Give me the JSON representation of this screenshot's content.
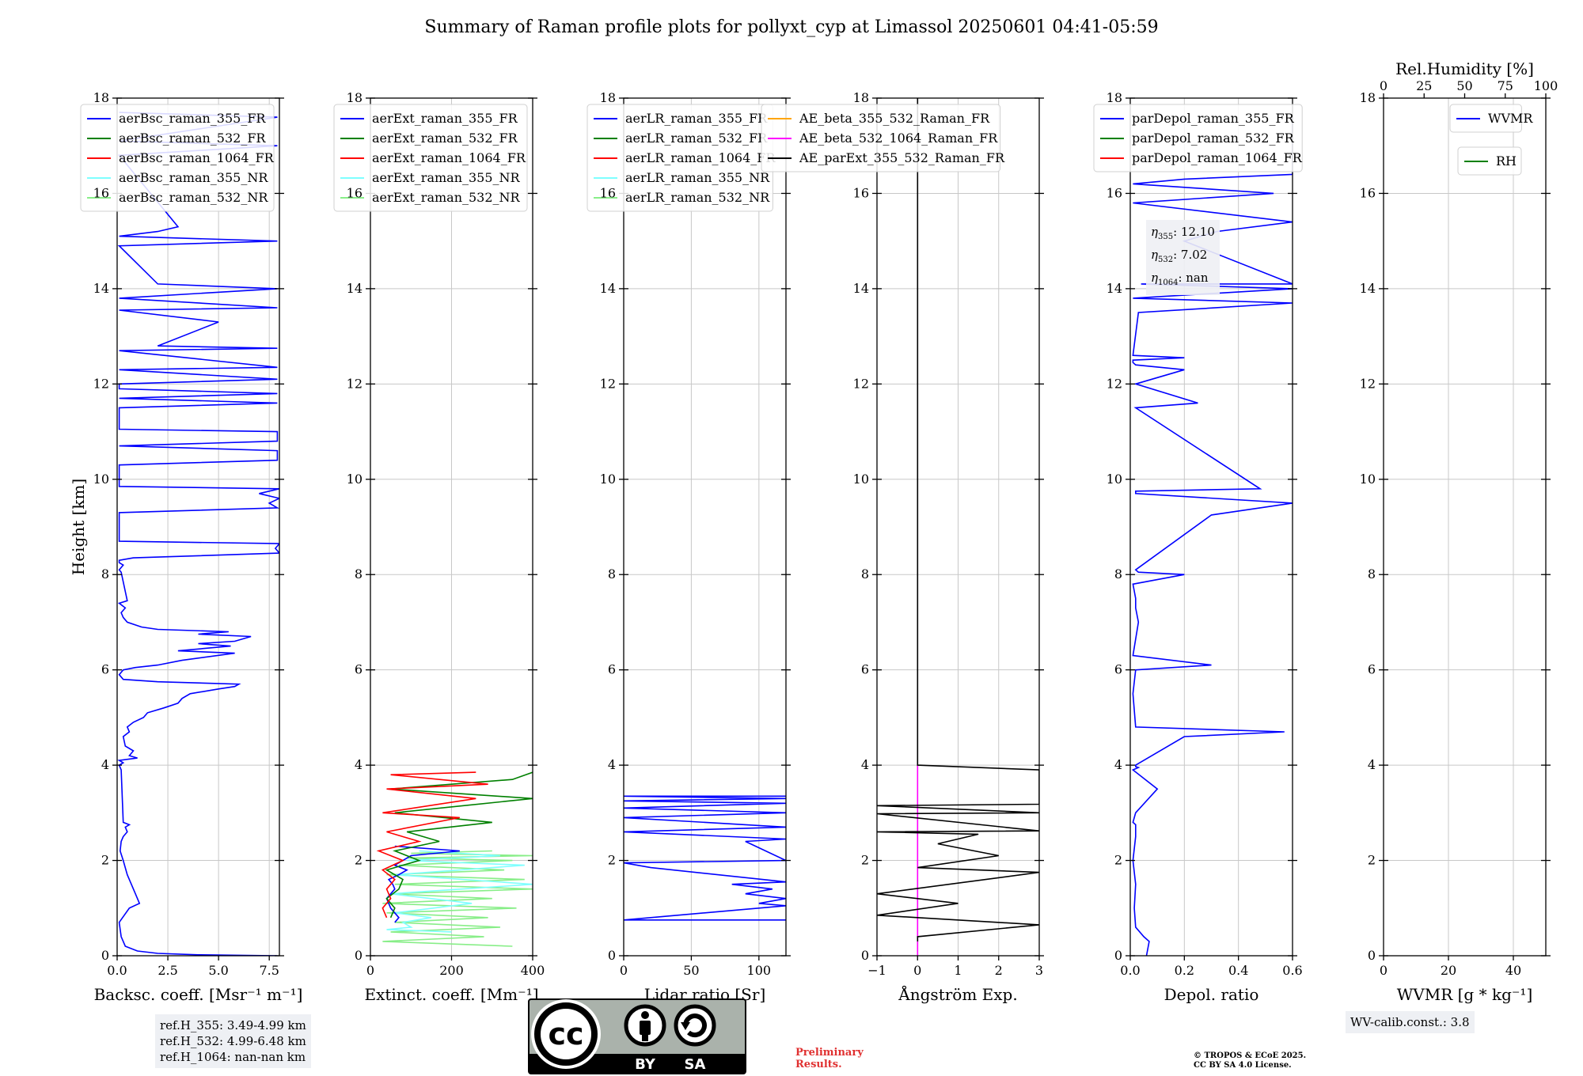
{
  "title": "Summary of Raman profile plots for pollyxt_cyp at Limassol 20250601 04:41-05:59",
  "y_axis_label": "Height [km]",
  "panels": [
    {
      "xlabel": "Backsc. coeff. [Msr⁻¹ m⁻¹]",
      "xlim": [
        0,
        8
      ],
      "xticks": [
        "0.0",
        "2.5",
        "5.0",
        "7.5"
      ],
      "xtick_values": [
        0,
        2.5,
        5,
        7.5
      ],
      "legend": [
        {
          "label": "aerBsc_raman_355_FR",
          "color": "#0000ff"
        },
        {
          "label": "aerBsc_raman_532_FR",
          "color": "#008000"
        },
        {
          "label": "aerBsc_raman_1064_FR",
          "color": "#ff0000"
        },
        {
          "label": "aerBsc_raman_355_NR",
          "color": "#7fffff"
        },
        {
          "label": "aerBsc_raman_532_NR",
          "color": "#88ee88"
        }
      ]
    },
    {
      "xlabel": "Extinct. coeff. [Mm⁻¹]",
      "xlim": [
        0,
        400
      ],
      "xticks": [
        "0",
        "200",
        "400"
      ],
      "xtick_values": [
        0,
        200,
        400
      ],
      "legend": [
        {
          "label": "aerExt_raman_355_FR",
          "color": "#0000ff"
        },
        {
          "label": "aerExt_raman_532_FR",
          "color": "#008000"
        },
        {
          "label": "aerExt_raman_1064_FR",
          "color": "#ff0000"
        },
        {
          "label": "aerExt_raman_355_NR",
          "color": "#7fffff"
        },
        {
          "label": "aerExt_raman_532_NR",
          "color": "#88ee88"
        }
      ]
    },
    {
      "xlabel": "Lidar ratio [Sr]",
      "xlim": [
        0,
        120
      ],
      "xticks": [
        "0",
        "50",
        "100"
      ],
      "xtick_values": [
        0,
        50,
        100
      ],
      "legend": [
        {
          "label": "aerLR_raman_355_FR",
          "color": "#0000ff"
        },
        {
          "label": "aerLR_raman_532_FR",
          "color": "#008000"
        },
        {
          "label": "aerLR_raman_1064_FR",
          "color": "#ff0000"
        },
        {
          "label": "aerLR_raman_355_NR",
          "color": "#7fffff"
        },
        {
          "label": "aerLR_raman_532_NR",
          "color": "#88ee88"
        }
      ]
    },
    {
      "xlabel": "Ångström Exp.",
      "xlim": [
        -1,
        3
      ],
      "xticks": [
        "−1",
        "0",
        "1",
        "2",
        "3"
      ],
      "xtick_values": [
        -1,
        0,
        1,
        2,
        3
      ],
      "legend": [
        {
          "label": "AE_beta_355_532_Raman_FR",
          "color": "#ffa500"
        },
        {
          "label": "AE_beta_532_1064_Raman_FR",
          "color": "#ff00ff"
        },
        {
          "label": "AE_parExt_355_532_Raman_FR",
          "color": "#000000"
        }
      ]
    },
    {
      "xlabel": "Depol. ratio",
      "xlim": [
        0,
        0.6
      ],
      "xticks": [
        "0.0",
        "0.2",
        "0.4",
        "0.6"
      ],
      "xtick_values": [
        0,
        0.2,
        0.4,
        0.6
      ],
      "legend": [
        {
          "label": "parDepol_raman_355_FR",
          "color": "#0000ff"
        },
        {
          "label": "parDepol_raman_532_FR",
          "color": "#008000"
        },
        {
          "label": "parDepol_raman_1064_FR",
          "color": "#ff0000"
        }
      ]
    },
    {
      "xlabel": "WVMR [g * kg⁻¹]",
      "xlim": [
        0,
        50
      ],
      "xticks": [
        "0",
        "20",
        "40"
      ],
      "xtick_values": [
        0,
        20,
        40
      ],
      "top_label": "Rel.Humidity [%]",
      "top_xlim": [
        0,
        100
      ],
      "top_xticks": [
        "0",
        "25",
        "50",
        "75",
        "100"
      ],
      "top_xtick_values": [
        0,
        25,
        50,
        75,
        100
      ],
      "legend": [
        {
          "label": "WVMR",
          "color": "#0000ff"
        }
      ],
      "legend2": [
        {
          "label": "RH",
          "color": "#008000"
        }
      ]
    }
  ],
  "ylim": [
    0,
    18
  ],
  "yticks": [
    "0",
    "2",
    "4",
    "6",
    "8",
    "10",
    "12",
    "14",
    "16",
    "18"
  ],
  "ytick_values": [
    0,
    2,
    4,
    6,
    8,
    10,
    12,
    14,
    16,
    18
  ],
  "eta_box": {
    "line1_label": "η",
    "line1_sub": "355",
    "line1_val": ": 12.10",
    "line2_label": "η",
    "line2_sub": "532",
    "line2_val": ": 7.02",
    "line3_label": "η",
    "line3_sub": "1064",
    "line3_val": ": nan"
  },
  "ref_heights": {
    "line1": "ref.H_355: 3.49-4.99 km",
    "line2": "ref.H_532: 4.99-6.48 km",
    "line3": "ref.H_1064: nan-nan km"
  },
  "wv_calib": "WV-calib.const.: 3.8",
  "preliminary": {
    "line1": "Preliminary",
    "line2": "Results."
  },
  "copyright": {
    "line1": "© TROPOS & ECoE 2025.",
    "line2": "CC BY SA 4.0 License."
  },
  "cc_badge": {
    "by": "BY",
    "sa": "SA",
    "cc": "cc"
  },
  "chart_data": [
    {
      "type": "line",
      "panel": "backscatter",
      "series": [
        {
          "name": "aerBsc_raman_355_FR",
          "color": "#0000ff",
          "x": [
            7.9,
            4.0,
            2.0,
            1.0,
            0.4,
            0.2,
            0.1,
            0.6,
            1.1,
            0.9,
            0.5,
            0.3,
            0.15,
            0.2,
            0.3,
            0.5,
            0.4,
            0.6,
            0.3,
            0.2,
            0.1,
            0.3,
            0.1,
            1.0,
            0.6,
            0.8,
            0.4,
            0.3,
            0.6,
            0.5,
            0.8,
            1.3,
            1.5,
            2.3,
            3.0,
            3.2,
            3.6,
            5.0,
            5.8,
            6.0,
            2.0,
            0.3,
            0.1,
            0.3,
            0.9,
            2.0,
            3.2,
            5.8,
            3.0,
            5.6,
            4.0,
            5.8,
            6.6,
            4.0,
            5.5,
            2.0,
            1.2,
            0.5,
            0.3,
            0.2,
            0.4,
            0.1,
            0.5,
            0.2,
            0.1,
            0.3,
            0.1,
            0.1,
            0.8,
            8.0,
            7.8,
            8.0,
            0.1,
            0.1,
            7.9,
            7.5,
            8.0,
            7.0,
            8.0,
            0.1,
            0.1,
            7.9,
            7.9,
            0.1,
            7.9,
            7.9,
            0.1,
            0.1,
            7.9,
            0.1,
            7.9,
            0.1,
            0.1,
            7.9,
            0.1,
            7.9,
            0.1,
            7.9,
            2.0,
            5.0,
            0.1,
            7.9,
            0.1,
            7.9,
            2.0,
            0.1,
            7.9,
            0.1,
            2.0,
            3.0,
            0.1,
            7.9,
            0.1,
            7.9,
            0.1
          ],
          "y": [
            0.0,
            0.02,
            0.05,
            0.1,
            0.2,
            0.4,
            0.7,
            1.0,
            1.1,
            1.3,
            1.7,
            2.0,
            2.2,
            2.4,
            2.5,
            2.6,
            2.7,
            2.75,
            2.8,
            3.9,
            4.0,
            4.05,
            4.1,
            4.15,
            4.2,
            4.3,
            4.4,
            4.6,
            4.7,
            4.8,
            4.9,
            5.0,
            5.1,
            5.2,
            5.3,
            5.4,
            5.5,
            5.6,
            5.65,
            5.7,
            5.75,
            5.8,
            5.9,
            6.0,
            6.05,
            6.1,
            6.2,
            6.35,
            6.4,
            6.5,
            6.55,
            6.6,
            6.7,
            6.75,
            6.8,
            6.85,
            6.9,
            7.0,
            7.1,
            7.2,
            7.3,
            7.4,
            7.45,
            8.05,
            8.1,
            8.2,
            8.25,
            8.3,
            8.35,
            8.45,
            8.55,
            8.65,
            8.7,
            9.3,
            9.4,
            9.5,
            9.6,
            9.7,
            9.8,
            9.85,
            10.3,
            10.4,
            10.6,
            10.7,
            10.8,
            11.0,
            11.05,
            11.5,
            11.6,
            11.7,
            11.8,
            11.9,
            12.0,
            12.1,
            12.3,
            12.35,
            12.7,
            12.75,
            12.8,
            13.3,
            13.55,
            13.6,
            13.8,
            14.0,
            14.1,
            14.9,
            15.0,
            15.1,
            15.2,
            15.3,
            16.8,
            17.0,
            17.1,
            17.6,
            17.7
          ]
        }
      ],
      "xlabel": "Backsc. coeff. [Msr⁻¹ m⁻¹]",
      "ylabel": "Height [km]",
      "xlim": [
        0,
        8
      ],
      "ylim": [
        0,
        18
      ]
    },
    {
      "type": "line",
      "panel": "extinction",
      "series": [
        {
          "name": "aerExt_raman_532_NR",
          "color": "#88ee88",
          "x": [
            350,
            30,
            280,
            50,
            320,
            60,
            290,
            40,
            360,
            30,
            300,
            50,
            400,
            60,
            380,
            40,
            330,
            70,
            350,
            90,
            400,
            100,
            300
          ],
          "y": [
            0.2,
            0.3,
            0.4,
            0.5,
            0.6,
            0.7,
            0.8,
            0.9,
            1.0,
            1.1,
            1.2,
            1.3,
            1.4,
            1.5,
            1.6,
            1.7,
            1.8,
            1.9,
            2.0,
            2.05,
            2.1,
            2.15,
            2.2
          ]
        },
        {
          "name": "aerExt_raman_355_NR",
          "color": "#7fffff",
          "x": [
            200,
            40,
            100,
            80,
            150,
            60,
            250,
            50,
            400,
            60,
            380,
            90,
            320,
            120
          ],
          "y": [
            0.5,
            0.55,
            0.6,
            0.7,
            0.8,
            0.9,
            1.1,
            1.3,
            1.5,
            1.7,
            1.9,
            2.0,
            2.1,
            2.2
          ]
        },
        {
          "name": "aerExt_raman_355_FR",
          "color": "#0000ff",
          "x": [
            60,
            70,
            50,
            40,
            60,
            55,
            45,
            70,
            90,
            60,
            80,
            100,
            220,
            60
          ],
          "y": [
            0.7,
            0.8,
            1.0,
            1.2,
            1.4,
            1.5,
            1.6,
            1.7,
            1.8,
            1.9,
            2.0,
            2.1,
            2.2,
            2.3
          ]
        },
        {
          "name": "aerExt_raman_532_FR",
          "color": "#008000",
          "x": [
            50,
            60,
            40,
            70,
            80,
            40,
            120,
            60,
            170,
            90,
            300,
            60,
            400,
            50,
            350,
            400
          ],
          "y": [
            0.8,
            1.0,
            1.2,
            1.4,
            1.6,
            1.8,
            2.0,
            2.2,
            2.4,
            2.6,
            2.8,
            3.0,
            3.3,
            3.5,
            3.7,
            3.85
          ]
        },
        {
          "name": "aerExt_raman_1064_FR",
          "color": "#ff0000",
          "x": [
            40,
            30,
            50,
            40,
            60,
            30,
            80,
            20,
            120,
            40,
            220,
            30,
            260,
            40,
            290,
            50,
            260
          ],
          "y": [
            0.8,
            1.0,
            1.2,
            1.4,
            1.6,
            1.8,
            2.0,
            2.2,
            2.4,
            2.6,
            2.9,
            3.0,
            3.3,
            3.5,
            3.6,
            3.8,
            3.85
          ]
        }
      ],
      "xlabel": "Extinct. coeff. [Mm⁻¹]",
      "xlim": [
        0,
        400
      ],
      "ylim": [
        0,
        18
      ]
    },
    {
      "type": "line",
      "panel": "lidar_ratio",
      "series": [
        {
          "name": "aerLR_raman_355_FR",
          "color": "#0000ff",
          "x": [
            120,
            0,
            120,
            100,
            120,
            90,
            110,
            80,
            120,
            20,
            0,
            120,
            90,
            120,
            0,
            120,
            0,
            120,
            0,
            120,
            0,
            120,
            0,
            120
          ],
          "y": [
            0.75,
            0.75,
            1.05,
            1.1,
            1.2,
            1.3,
            1.4,
            1.5,
            1.55,
            1.85,
            1.95,
            2.0,
            2.4,
            2.45,
            2.6,
            2.7,
            2.9,
            3.0,
            3.1,
            3.2,
            3.25,
            3.3,
            3.35,
            3.35
          ]
        }
      ],
      "xlabel": "Lidar ratio [Sr]",
      "xlim": [
        0,
        120
      ],
      "ylim": [
        0,
        18
      ]
    },
    {
      "type": "line",
      "panel": "angstrom",
      "series": [
        {
          "name": "AE_beta_532_1064_Raman_FR",
          "color": "#ff00ff",
          "x": [
            0,
            0
          ],
          "y": [
            0,
            4.0
          ]
        },
        {
          "name": "AE_parExt_355_532_Raman_FR",
          "color": "#000000",
          "x": [
            0,
            0,
            3,
            0,
            -1,
            1,
            -1,
            3,
            0,
            2,
            0.5,
            1.5,
            -1,
            3,
            -1,
            3,
            -1,
            3,
            3,
            0,
            0
          ],
          "y": [
            0.3,
            0.4,
            0.65,
            0.8,
            0.85,
            1.1,
            1.3,
            1.75,
            1.85,
            2.1,
            2.35,
            2.55,
            2.6,
            2.62,
            2.98,
            3.0,
            3.15,
            3.18,
            3.9,
            4.0,
            18
          ]
        }
      ],
      "xlabel": "Ångström Exp.",
      "xlim": [
        -1,
        3
      ],
      "ylim": [
        0,
        18
      ]
    },
    {
      "type": "line",
      "panel": "depol",
      "series": [
        {
          "name": "parDepol_raman_355_FR",
          "color": "#0000ff",
          "x": [
            0.06,
            0.07,
            0.05,
            0.02,
            0.015,
            0.02,
            0.01,
            0.02,
            0.02,
            0.01,
            0.02,
            0.1,
            0.01,
            0.03,
            0.02,
            0.02,
            0.2,
            0.57,
            0.02,
            0.01,
            0.02,
            0.3,
            0.01,
            0.03,
            0.02,
            0.02,
            0.01,
            0.2,
            0.03,
            0.02,
            0.3,
            0.6,
            0.02,
            0.02,
            0.48,
            0.02,
            0.25,
            0.02,
            0.2,
            0.02,
            0.01,
            0.01,
            0.2,
            0.01,
            0.03,
            0.6,
            0.01,
            0.6,
            0.04,
            0.6,
            0.2,
            0.32,
            0.6,
            0.01,
            0.53,
            0.01,
            0.2,
            0.6,
            0.6,
            0.6
          ],
          "y": [
            0.0,
            0.3,
            0.4,
            0.6,
            1.0,
            1.5,
            2.0,
            2.5,
            2.75,
            2.8,
            3.0,
            3.5,
            3.9,
            3.95,
            3.97,
            4.0,
            4.6,
            4.7,
            4.8,
            5.5,
            6.0,
            6.1,
            6.3,
            7.0,
            7.3,
            7.5,
            7.8,
            8.0,
            8.05,
            8.1,
            9.25,
            9.5,
            9.7,
            9.75,
            9.8,
            11.5,
            11.6,
            12.0,
            12.3,
            12.4,
            12.45,
            12.5,
            12.55,
            12.6,
            13.5,
            13.7,
            13.8,
            14.0,
            14.1,
            14.1,
            15.0,
            15.2,
            15.4,
            15.8,
            16.0,
            16.2,
            16.3,
            16.4,
            17.1,
            17.6
          ]
        }
      ],
      "xlabel": "Depol. ratio",
      "xlim": [
        0,
        0.6
      ],
      "ylim": [
        0,
        18
      ]
    },
    {
      "type": "line",
      "panel": "wvmr",
      "series": [],
      "xlabel": "WVMR [g * kg⁻¹]",
      "xlim": [
        0,
        50
      ],
      "ylim": [
        0,
        18
      ]
    }
  ]
}
